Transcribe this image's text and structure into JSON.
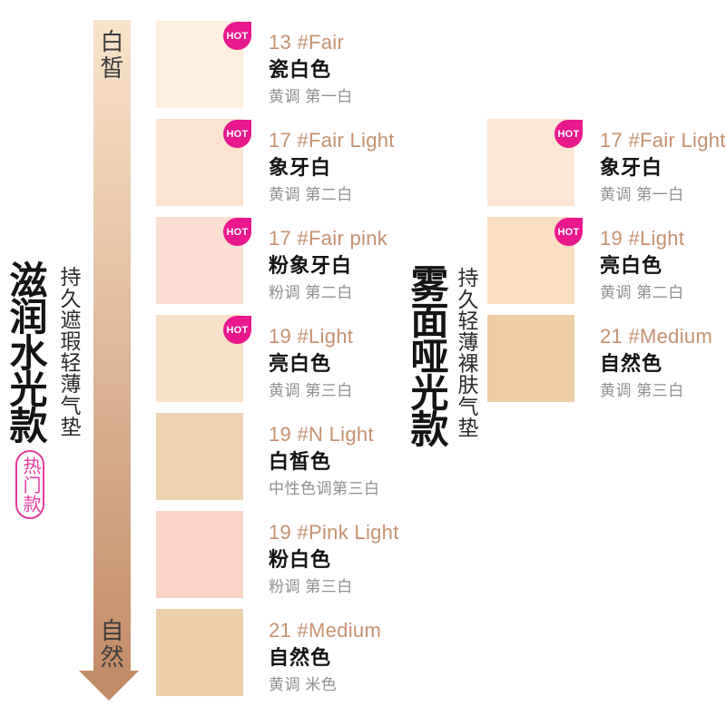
{
  "badge_label": "HOT",
  "gradient_axis": {
    "top_label": "白皙",
    "bottom_label": "自然",
    "top_color": "#f9e4cc",
    "bottom_color": "#c48d6a",
    "arrowhead_color": "#c38c69"
  },
  "colors": {
    "hot_badge": "#e9188c",
    "tag_pink": "#e43a9e",
    "code_text": "#c6916f",
    "name_text": "#141414",
    "tone_text": "#8f8f8f",
    "title_text": "#141414",
    "axis_text": "#3d3d3d"
  },
  "columns": [
    {
      "id": "left",
      "title": "滋润水光款",
      "subtitle": "持久遮瑕轻薄气垫",
      "tag": "热门款",
      "items": [
        {
          "code": "13 #Fair",
          "name": "瓷白色",
          "tone": "黄调 第一白",
          "hot": true,
          "color": "#fdeede"
        },
        {
          "code": "17 #Fair Light",
          "name": "象牙白",
          "tone": "黄调 第二白",
          "hot": true,
          "color": "#fbe3d0"
        },
        {
          "code": "17 #Fair pink",
          "name": "粉象牙白",
          "tone": "粉调 第二白",
          "hot": true,
          "color": "#fcdfd3"
        },
        {
          "code": "19 #Light",
          "name": "亮白色",
          "tone": "黄调 第三白",
          "hot": true,
          "color": "#f9e0c8"
        },
        {
          "code": "19 #N Light",
          "name": "白皙色",
          "tone": "中性色调第三白",
          "hot": false,
          "color": "#efd3b1"
        },
        {
          "code": "19 #Pink Light",
          "name": "粉白色",
          "tone": "粉调 第三白",
          "hot": false,
          "color": "#fbd4c5"
        },
        {
          "code": "21 #Medium",
          "name": "自然色",
          "tone": "黄调 米色",
          "hot": false,
          "color": "#edd0aa"
        }
      ]
    },
    {
      "id": "right",
      "title": "雾面哑光款",
      "subtitle": "持久轻薄裸肤气垫",
      "tag": null,
      "items": [
        {
          "code": "17 #Fair Light",
          "name": "象牙白",
          "tone": "黄调 第一白",
          "hot": true,
          "color": "#fde7d4"
        },
        {
          "code": "19 #Light",
          "name": "亮白色",
          "tone": "黄调 第二白",
          "hot": true,
          "color": "#fadec4"
        },
        {
          "code": "21 #Medium",
          "name": "自然色",
          "tone": "黄调 第三白",
          "hot": false,
          "color": "#eecda6"
        }
      ]
    }
  ]
}
